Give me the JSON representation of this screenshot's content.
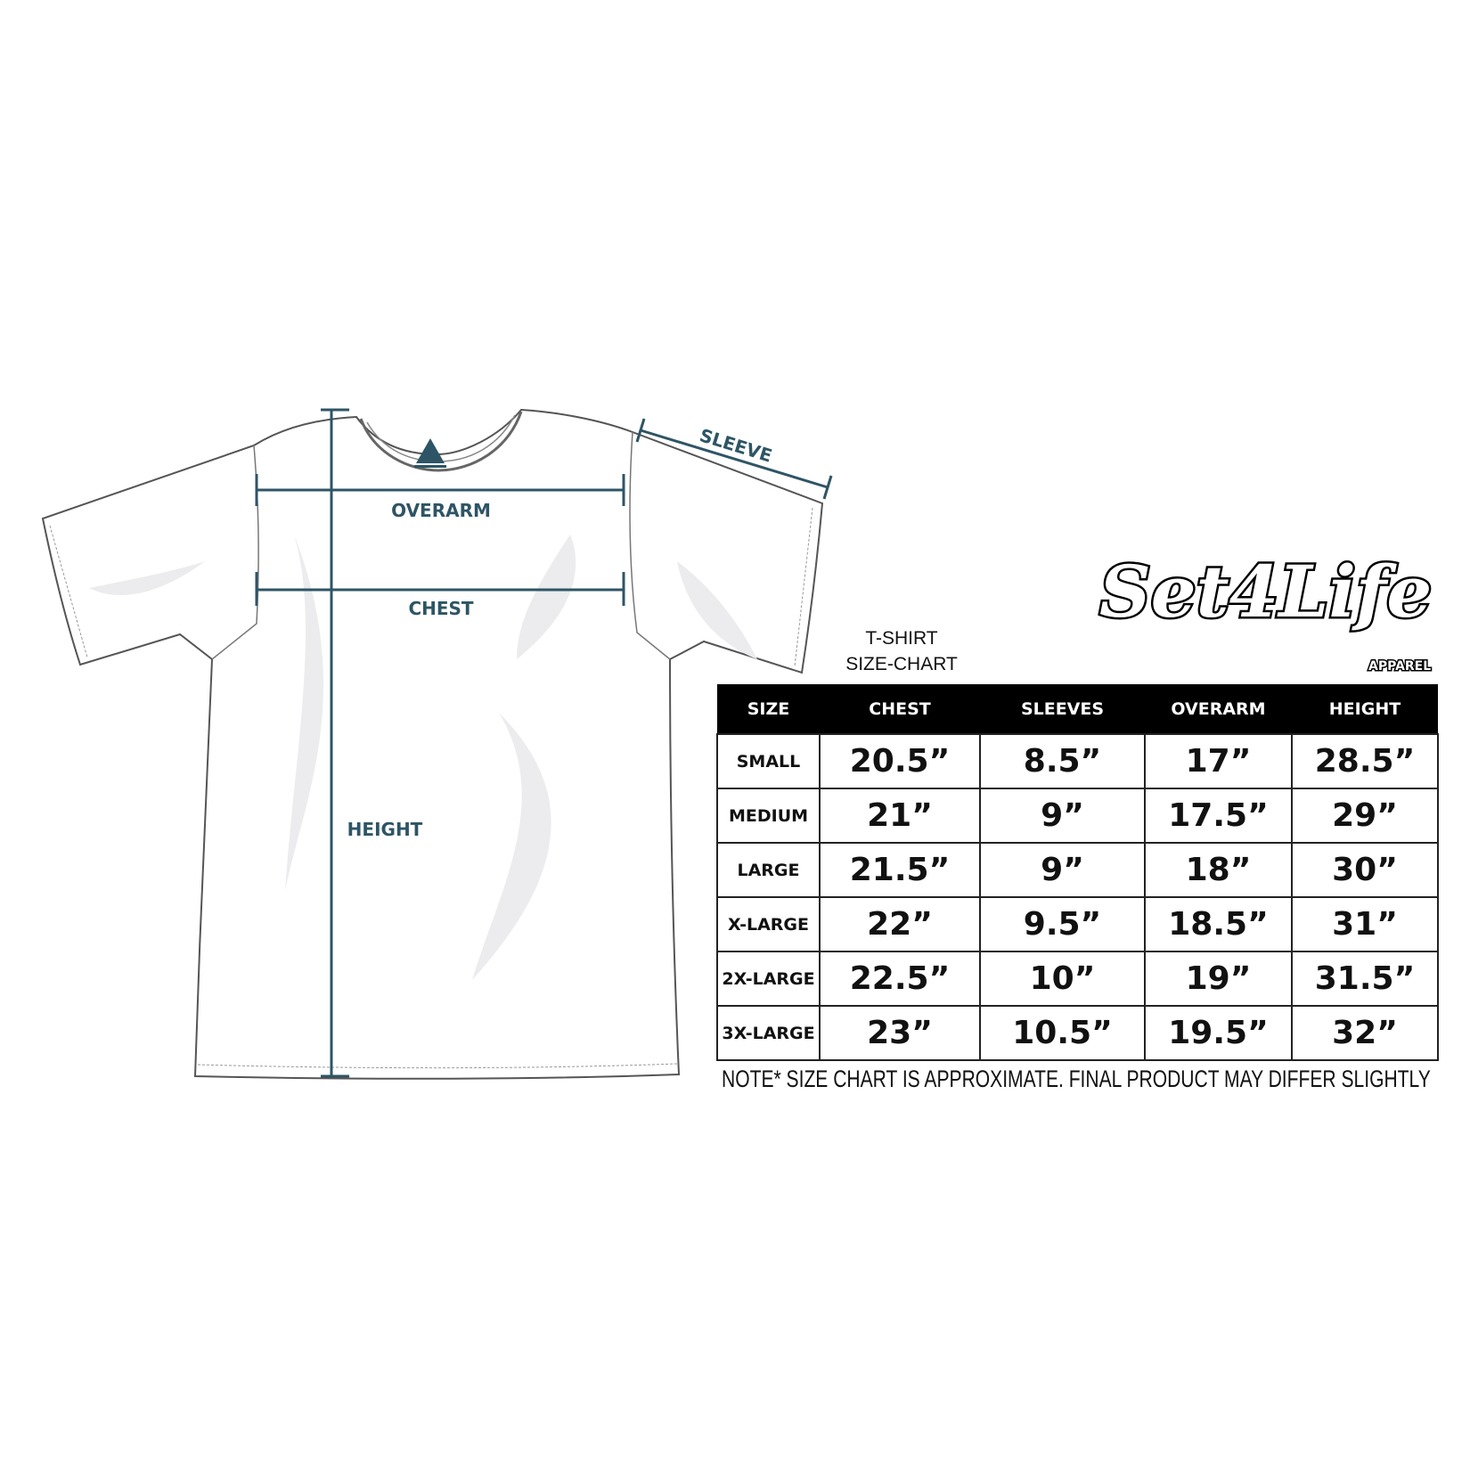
{
  "colors": {
    "measure": "#2e5566",
    "header_bg": "#000000",
    "header_text": "#ffffff"
  },
  "diagram": {
    "overarm_label": "OVERARM",
    "chest_label": "CHEST",
    "height_label": "HEIGHT",
    "sleeve_label": "SLEEVE"
  },
  "logo": {
    "brand": "Set4Life",
    "sub": "APPAREL"
  },
  "chart_title": {
    "line1": "T-SHIRT",
    "line2": "SIZE-CHART"
  },
  "table": {
    "headers": [
      "SIZE",
      "CHEST",
      "SLEEVES",
      "OVERARM",
      "HEIGHT"
    ],
    "rows": [
      [
        "SMALL",
        "20.5”",
        "8.5”",
        "17”",
        "28.5”"
      ],
      [
        "MEDIUM",
        "21”",
        "9”",
        "17.5”",
        "29”"
      ],
      [
        "LARGE",
        "21.5”",
        "9”",
        "18”",
        "30”"
      ],
      [
        "X-LARGE",
        "22”",
        "9.5”",
        "18.5”",
        "31”"
      ],
      [
        "2X-LARGE",
        "22.5”",
        "10”",
        "19”",
        "31.5”"
      ],
      [
        "3X-LARGE",
        "23”",
        "10.5”",
        "19.5”",
        "32”"
      ]
    ]
  },
  "note": "NOTE* SIZE CHART IS APPROXIMATE. FINAL PRODUCT MAY DIFFER SLIGHTLY"
}
